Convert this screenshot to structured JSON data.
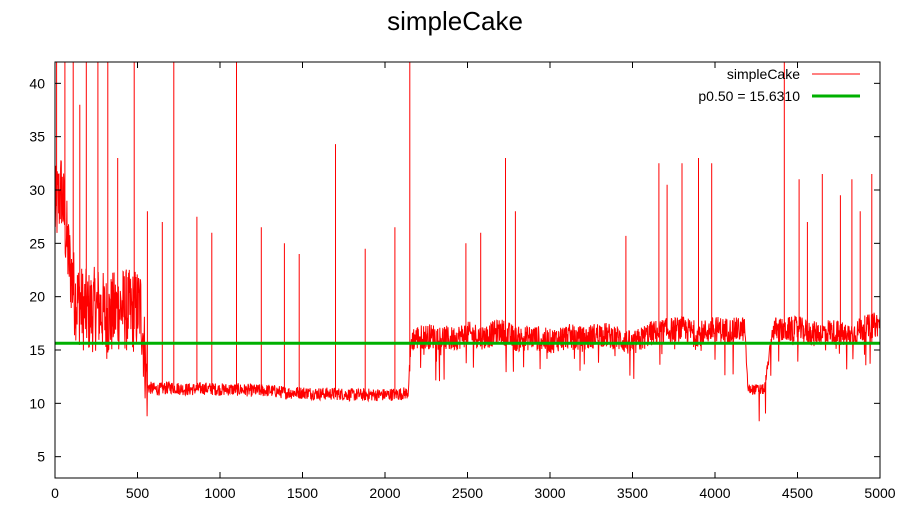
{
  "chart_data": {
    "type": "line",
    "title": "simpleCake",
    "xlabel": "",
    "ylabel": "",
    "xlim": [
      0,
      5000
    ],
    "ylim": [
      3,
      42
    ],
    "x_ticks": [
      0,
      500,
      1000,
      1500,
      2000,
      2500,
      3000,
      3500,
      4000,
      4500,
      5000
    ],
    "y_ticks": [
      5,
      10,
      15,
      20,
      25,
      30,
      35,
      40
    ],
    "grid": false,
    "legend_position": "top-right",
    "series": [
      {
        "name": "simpleCake",
        "color": "#ff0000",
        "x": [
          0,
          40,
          80,
          120,
          160,
          200,
          260,
          320,
          400,
          460,
          520,
          560,
          620,
          700,
          800,
          900,
          1000,
          1100,
          1200,
          1300,
          1400,
          1500,
          1600,
          1700,
          1800,
          1900,
          2000,
          2100,
          2140,
          2160,
          2200,
          2300,
          2400,
          2500,
          2600,
          2700,
          2800,
          2900,
          3000,
          3100,
          3200,
          3300,
          3400,
          3500,
          3600,
          3700,
          3800,
          3900,
          4000,
          4100,
          4180,
          4200,
          4250,
          4300,
          4350,
          4400,
          4500,
          4600,
          4700,
          4800,
          4900,
          5000
        ],
        "values": [
          28,
          30,
          24,
          20,
          19,
          18.5,
          19,
          18,
          19,
          18.5,
          19,
          11.5,
          11.3,
          11.5,
          11.3,
          11.4,
          11.3,
          11.3,
          11.2,
          11.2,
          11,
          11,
          10.9,
          10.9,
          10.8,
          10.8,
          10.8,
          10.9,
          11,
          16,
          16.2,
          16.3,
          16,
          16.5,
          16.2,
          16.8,
          16,
          16.2,
          15.8,
          16.3,
          16,
          16.5,
          16.2,
          15.5,
          16.5,
          16.8,
          17,
          16.5,
          17,
          16.8,
          17,
          11.3,
          11.3,
          11.3,
          17,
          16.8,
          17,
          16.5,
          16.8,
          16.3,
          17,
          17.5
        ],
        "spikes": [
          {
            "x": 10,
            "y": 42
          },
          {
            "x": 60,
            "y": 42
          },
          {
            "x": 110,
            "y": 42
          },
          {
            "x": 150,
            "y": 38
          },
          {
            "x": 190,
            "y": 42
          },
          {
            "x": 260,
            "y": 42
          },
          {
            "x": 320,
            "y": 42
          },
          {
            "x": 380,
            "y": 33
          },
          {
            "x": 480,
            "y": 42
          },
          {
            "x": 560,
            "y": 28
          },
          {
            "x": 650,
            "y": 27
          },
          {
            "x": 720,
            "y": 42
          },
          {
            "x": 860,
            "y": 27.5
          },
          {
            "x": 950,
            "y": 26
          },
          {
            "x": 1100,
            "y": 42
          },
          {
            "x": 1250,
            "y": 26.5
          },
          {
            "x": 1390,
            "y": 25
          },
          {
            "x": 1480,
            "y": 24
          },
          {
            "x": 1700,
            "y": 34.3
          },
          {
            "x": 1880,
            "y": 24.5
          },
          {
            "x": 2060,
            "y": 26.5
          },
          {
            "x": 2150,
            "y": 42
          },
          {
            "x": 2490,
            "y": 25
          },
          {
            "x": 2580,
            "y": 26
          },
          {
            "x": 2730,
            "y": 33
          },
          {
            "x": 2790,
            "y": 28
          },
          {
            "x": 3460,
            "y": 25.7
          },
          {
            "x": 3660,
            "y": 32.5
          },
          {
            "x": 3710,
            "y": 30.5
          },
          {
            "x": 3800,
            "y": 32.5
          },
          {
            "x": 3900,
            "y": 33
          },
          {
            "x": 3980,
            "y": 32.5
          },
          {
            "x": 4420,
            "y": 42
          },
          {
            "x": 4510,
            "y": 31
          },
          {
            "x": 4560,
            "y": 27
          },
          {
            "x": 4650,
            "y": 31.5
          },
          {
            "x": 4760,
            "y": 29.5
          },
          {
            "x": 4830,
            "y": 31
          },
          {
            "x": 4880,
            "y": 28
          },
          {
            "x": 4950,
            "y": 31.5
          }
        ]
      },
      {
        "name": "p0.50 = 15.6310",
        "color": "#00b000",
        "x": [
          0,
          5000
        ],
        "values": [
          15.631,
          15.631
        ]
      }
    ]
  }
}
